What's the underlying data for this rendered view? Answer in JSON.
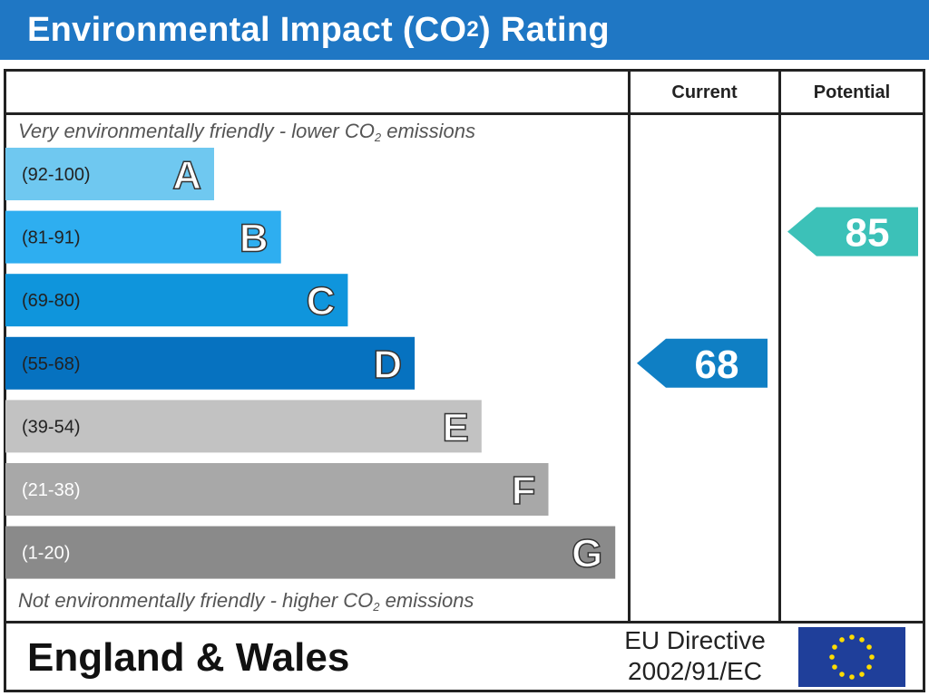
{
  "header": {
    "title_prefix": "Environmental Impact (CO",
    "title_subscript": "2",
    "title_suffix": ") Rating"
  },
  "columns": {
    "current": "Current",
    "potential": "Potential"
  },
  "notes": {
    "top_prefix": "Very environmentally friendly - lower CO",
    "top_sub": "2",
    "top_suffix": " emissions",
    "bottom_prefix": "Not environmentally friendly - higher CO",
    "bottom_sub": "2",
    "bottom_suffix": " emissions"
  },
  "footer": {
    "country": "England & Wales",
    "directive_line1": "EU Directive",
    "directive_line2": "2002/91/EC"
  },
  "chart_data": {
    "type": "bar",
    "bands": [
      {
        "letter": "A",
        "range": "(92-100)",
        "color": "#6fc8f0",
        "text_color": "#222222"
      },
      {
        "letter": "B",
        "range": "(81-91)",
        "color": "#2eaef0",
        "text_color": "#222222"
      },
      {
        "letter": "C",
        "range": "(69-80)",
        "color": "#0f95dc",
        "text_color": "#222222"
      },
      {
        "letter": "D",
        "range": "(55-68)",
        "color": "#0672c0",
        "text_color": "#222222"
      },
      {
        "letter": "E",
        "range": "(39-54)",
        "color": "#c2c2c2",
        "text_color": "#222222"
      },
      {
        "letter": "F",
        "range": "(21-38)",
        "color": "#a8a8a8",
        "text_color": "#ffffff"
      },
      {
        "letter": "G",
        "range": "(1-20)",
        "color": "#8a8a8a",
        "text_color": "#ffffff"
      }
    ],
    "current": {
      "value": 68,
      "band": "D",
      "color": "#0f7fc4"
    },
    "potential": {
      "value": 85,
      "band": "B",
      "color": "#3cc1b8"
    }
  }
}
